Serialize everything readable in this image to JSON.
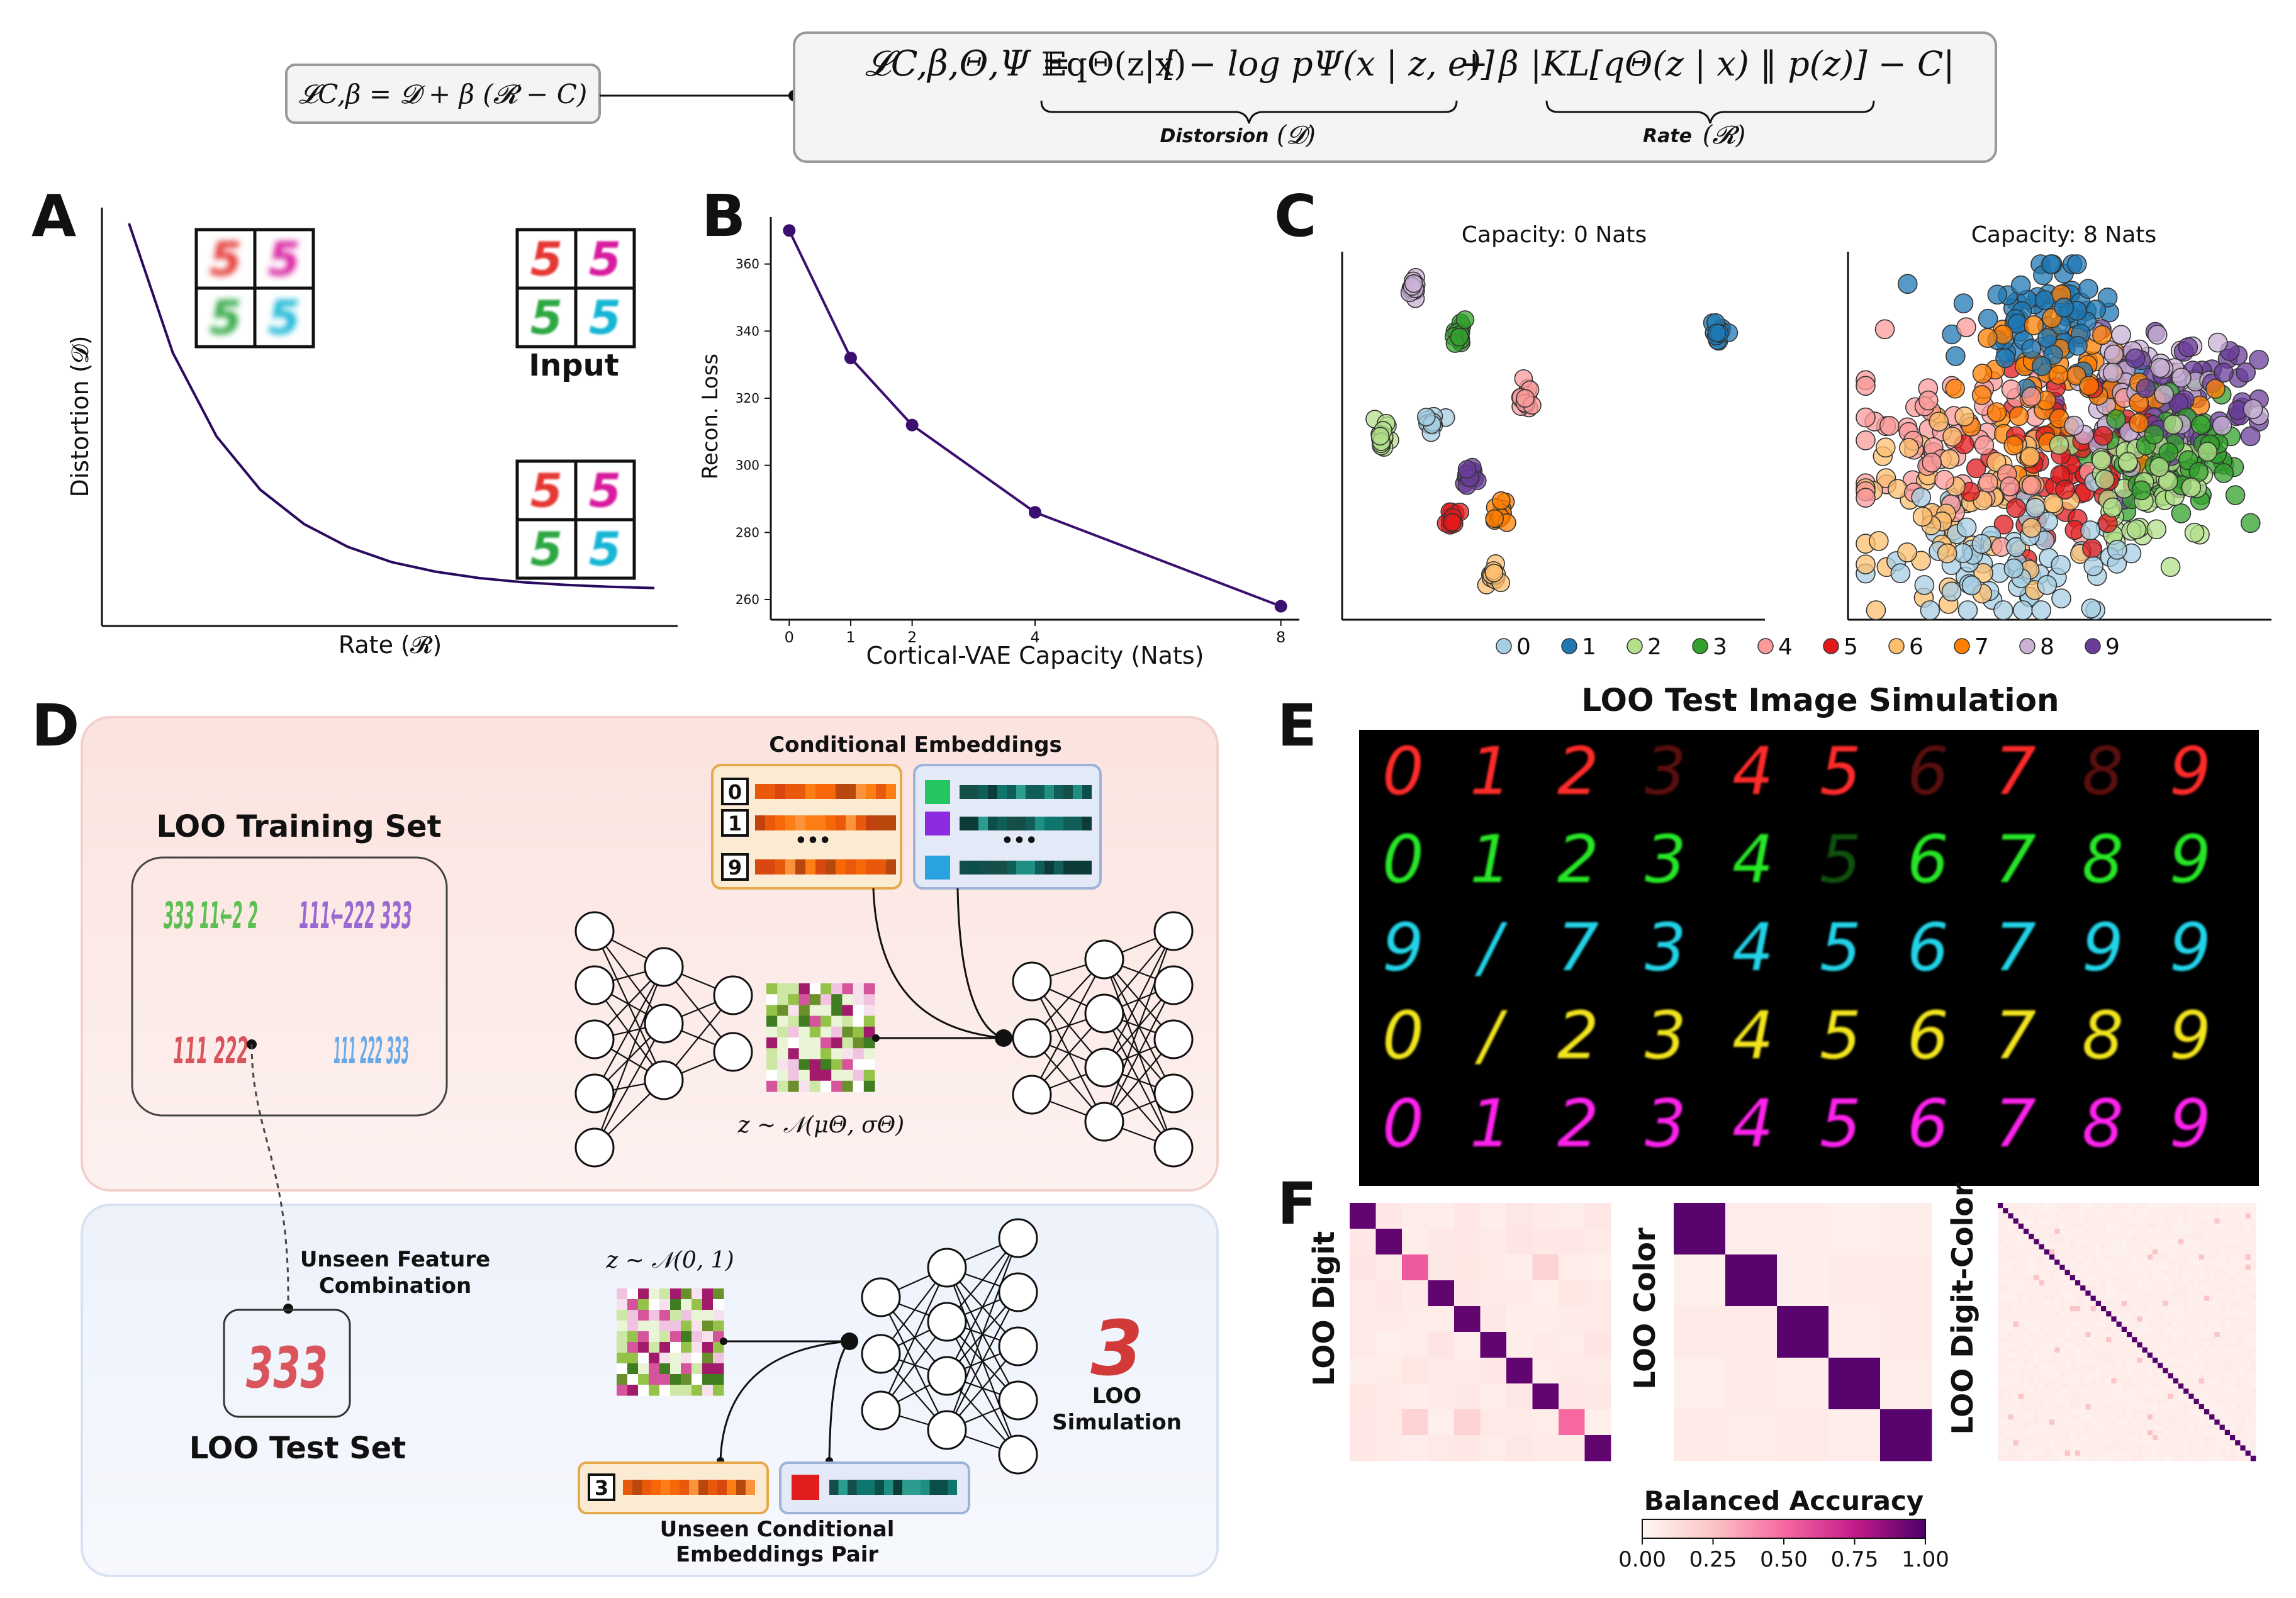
{
  "header": {
    "short_formula": "𝓛C,β = 𝓓 + β (𝓡 − C)",
    "loss_lhs": "𝓛C,β,Θ,Ψ =",
    "loss_expectation": "𝔼qΘ(z|x)",
    "loss_recon_term": "[ − log pΨ(x | z, e)]",
    "loss_plus_beta": "+ β",
    "loss_kl_term": "|KL[qΘ(z | x) ‖ p(z)] − C|",
    "distortion_label": "Distorsion",
    "distortion_symbol": "(𝓓)",
    "rate_label": "Rate",
    "rate_symbol": "(𝓡)"
  },
  "panels": {
    "A": "A",
    "B": "B",
    "C": "C",
    "D": "D",
    "E": "E",
    "F": "F"
  },
  "panel_a": {
    "ylabel": "Distortion (𝓓)",
    "xlabel": "Rate (𝓡)",
    "input_label": "Input",
    "digits": [
      "5",
      "5",
      "5",
      "5"
    ],
    "digit_colors": [
      "#e53935",
      "#d81b9f",
      "#2ea843",
      "#19b6d6"
    ]
  },
  "panel_c": {
    "title_left": "Capacity: 0 Nats",
    "title_right": "Capacity: 8 Nats",
    "legend": [
      {
        "label": "0",
        "color": "#a6cee3"
      },
      {
        "label": "1",
        "color": "#1f78b4"
      },
      {
        "label": "2",
        "color": "#b2df8a"
      },
      {
        "label": "3",
        "color": "#33a02c"
      },
      {
        "label": "4",
        "color": "#fb9a99"
      },
      {
        "label": "5",
        "color": "#e31a1c"
      },
      {
        "label": "6",
        "color": "#fdbf6f"
      },
      {
        "label": "7",
        "color": "#ff7f00"
      },
      {
        "label": "8",
        "color": "#cab2d6"
      },
      {
        "label": "9",
        "color": "#6a3d9a"
      }
    ]
  },
  "panel_d": {
    "conditional_embeddings_title": "Conditional Embeddings",
    "embedding_digits": [
      "0",
      "1",
      "9"
    ],
    "ellipsis": "•••",
    "training_set_title": "LOO Training Set",
    "cluster_green": "333 11←2 2",
    "cluster_purple": "111←222 333",
    "cluster_red": "111 222",
    "cluster_blue": "111 222 333",
    "latent_label": "z ∼ 𝒩(μΘ, σΘ)",
    "prior_label": "z ∼ 𝒩(0, 1)",
    "unseen_feature_line1": "Unseen Feature",
    "unseen_feature_line2": "Combination",
    "test_set_title": "LOO Test Set",
    "test_digits": "333",
    "loo_sim_line1": "LOO",
    "loo_sim_line2": "Simulation",
    "unseen_digit": "3",
    "unseen_pair_line1": "Unseen Conditional",
    "unseen_pair_line2": "Embeddings Pair"
  },
  "panel_e": {
    "title": "LOO Test Image Simulation",
    "rows": [
      {
        "color": "#ff2a2a",
        "digits": [
          "0",
          "1",
          "2",
          "3",
          "4",
          "5",
          "6",
          "7",
          "8",
          "9"
        ]
      },
      {
        "color": "#26e626",
        "digits": [
          "0",
          "1",
          "2",
          "3",
          "4",
          "5",
          "6",
          "7",
          "8",
          "9"
        ]
      },
      {
        "color": "#22d3e8",
        "digits": [
          "9",
          "/",
          "7",
          "3",
          "4",
          "5",
          "6",
          "7",
          "9",
          "9"
        ]
      },
      {
        "color": "#f2e51a",
        "digits": [
          "0",
          "/",
          "2",
          "3",
          "4",
          "5",
          "6",
          "7",
          "8",
          "9"
        ]
      },
      {
        "color": "#ff22ee",
        "digits": [
          "0",
          "1",
          "2",
          "3",
          "4",
          "5",
          "6",
          "7",
          "8",
          "9"
        ]
      }
    ],
    "faint_cells": [
      "0-3",
      "0-6",
      "0-8",
      "1-5"
    ]
  },
  "panel_f": {
    "label_digit": "LOO Digit",
    "label_color": "LOO Color",
    "label_digit_color": "LOO Digit-Color",
    "colorbar_title": "Balanced Accuracy",
    "colorbar_ticks": [
      "0.00",
      "0.25",
      "0.50",
      "0.75",
      "1.00"
    ]
  },
  "chart_data": [
    {
      "type": "line",
      "panel": "A",
      "title": "",
      "xlabel": "Rate (𝓡)",
      "ylabel": "Distortion (𝓓)",
      "description_series": "rate-distortion curve",
      "x": [
        0,
        0.5,
        1,
        1.5,
        2,
        2.5,
        3,
        3.5,
        4,
        4.5,
        5,
        5.5,
        6
      ],
      "y": [
        100,
        66,
        44,
        30,
        21,
        15,
        11,
        8.5,
        6.8,
        5.7,
        5,
        4.5,
        4.2
      ],
      "color": "#2a0a5e"
    },
    {
      "type": "line",
      "panel": "B",
      "title": "",
      "xlabel": "Cortical-VAE Capacity (Nats)",
      "ylabel": "Recon. Loss",
      "x": [
        0,
        1,
        2,
        4,
        8
      ],
      "y": [
        370,
        332,
        312,
        286,
        258
      ],
      "xticks": [
        "0",
        "1",
        "2",
        "4",
        "8"
      ],
      "yticks": [
        "260",
        "280",
        "300",
        "320",
        "340",
        "360"
      ],
      "xlim": [
        -0.3,
        8.3
      ],
      "ylim": [
        254,
        374
      ],
      "color": "#3b0f70"
    },
    {
      "type": "scatter",
      "panel": "C-left",
      "title": "Capacity: 0 Nats",
      "clusters": [
        {
          "digit": "0",
          "x": 1.8,
          "y": 5.5
        },
        {
          "digit": "1",
          "x": 9.1,
          "y": 8.0
        },
        {
          "digit": "2",
          "x": 0.6,
          "y": 5.0
        },
        {
          "digit": "3",
          "x": 2.5,
          "y": 8.0
        },
        {
          "digit": "4",
          "x": 4.2,
          "y": 6.1
        },
        {
          "digit": "5",
          "x": 2.3,
          "y": 2.6
        },
        {
          "digit": "6",
          "x": 3.4,
          "y": 1.0
        },
        {
          "digit": "7",
          "x": 3.5,
          "y": 2.8
        },
        {
          "digit": "8",
          "x": 1.4,
          "y": 9.3
        },
        {
          "digit": "9",
          "x": 2.8,
          "y": 3.9
        }
      ]
    },
    {
      "type": "scatter",
      "panel": "C-right",
      "title": "Capacity: 8 Nats",
      "clusters": [
        {
          "digit": "0",
          "x": 3.5,
          "y": 1.5,
          "spread": 1.6
        },
        {
          "digit": "1",
          "x": 4.5,
          "y": 8.6,
          "spread": 1.2
        },
        {
          "digit": "2",
          "x": 7.0,
          "y": 3.6,
          "spread": 1.2
        },
        {
          "digit": "3",
          "x": 8.0,
          "y": 4.5,
          "spread": 1.0
        },
        {
          "digit": "4",
          "x": 2.5,
          "y": 4.8,
          "spread": 1.6
        },
        {
          "digit": "5",
          "x": 5.2,
          "y": 4.2,
          "spread": 1.4
        },
        {
          "digit": "6",
          "x": 2.6,
          "y": 2.7,
          "spread": 1.6
        },
        {
          "digit": "7",
          "x": 5.0,
          "y": 6.6,
          "spread": 1.5
        },
        {
          "digit": "8",
          "x": 7.0,
          "y": 6.2,
          "spread": 1.3
        },
        {
          "digit": "9",
          "x": 7.8,
          "y": 6.0,
          "spread": 1.2
        }
      ]
    },
    {
      "type": "heatmap",
      "panel": "F-digit",
      "title": "LOO Digit",
      "size": 10,
      "diagonal": [
        0.9,
        0.9,
        0.5,
        0.9,
        0.9,
        0.9,
        0.9,
        0.9,
        0.5,
        0.9
      ]
    },
    {
      "type": "heatmap",
      "panel": "F-color",
      "title": "LOO Color",
      "size": 5,
      "diagonal": [
        1.0,
        1.0,
        1.0,
        1.0,
        1.0
      ]
    },
    {
      "type": "heatmap",
      "panel": "F-digit-color",
      "title": "LOO Digit-Color",
      "size": 50,
      "diagonal_value": 1.0
    }
  ]
}
